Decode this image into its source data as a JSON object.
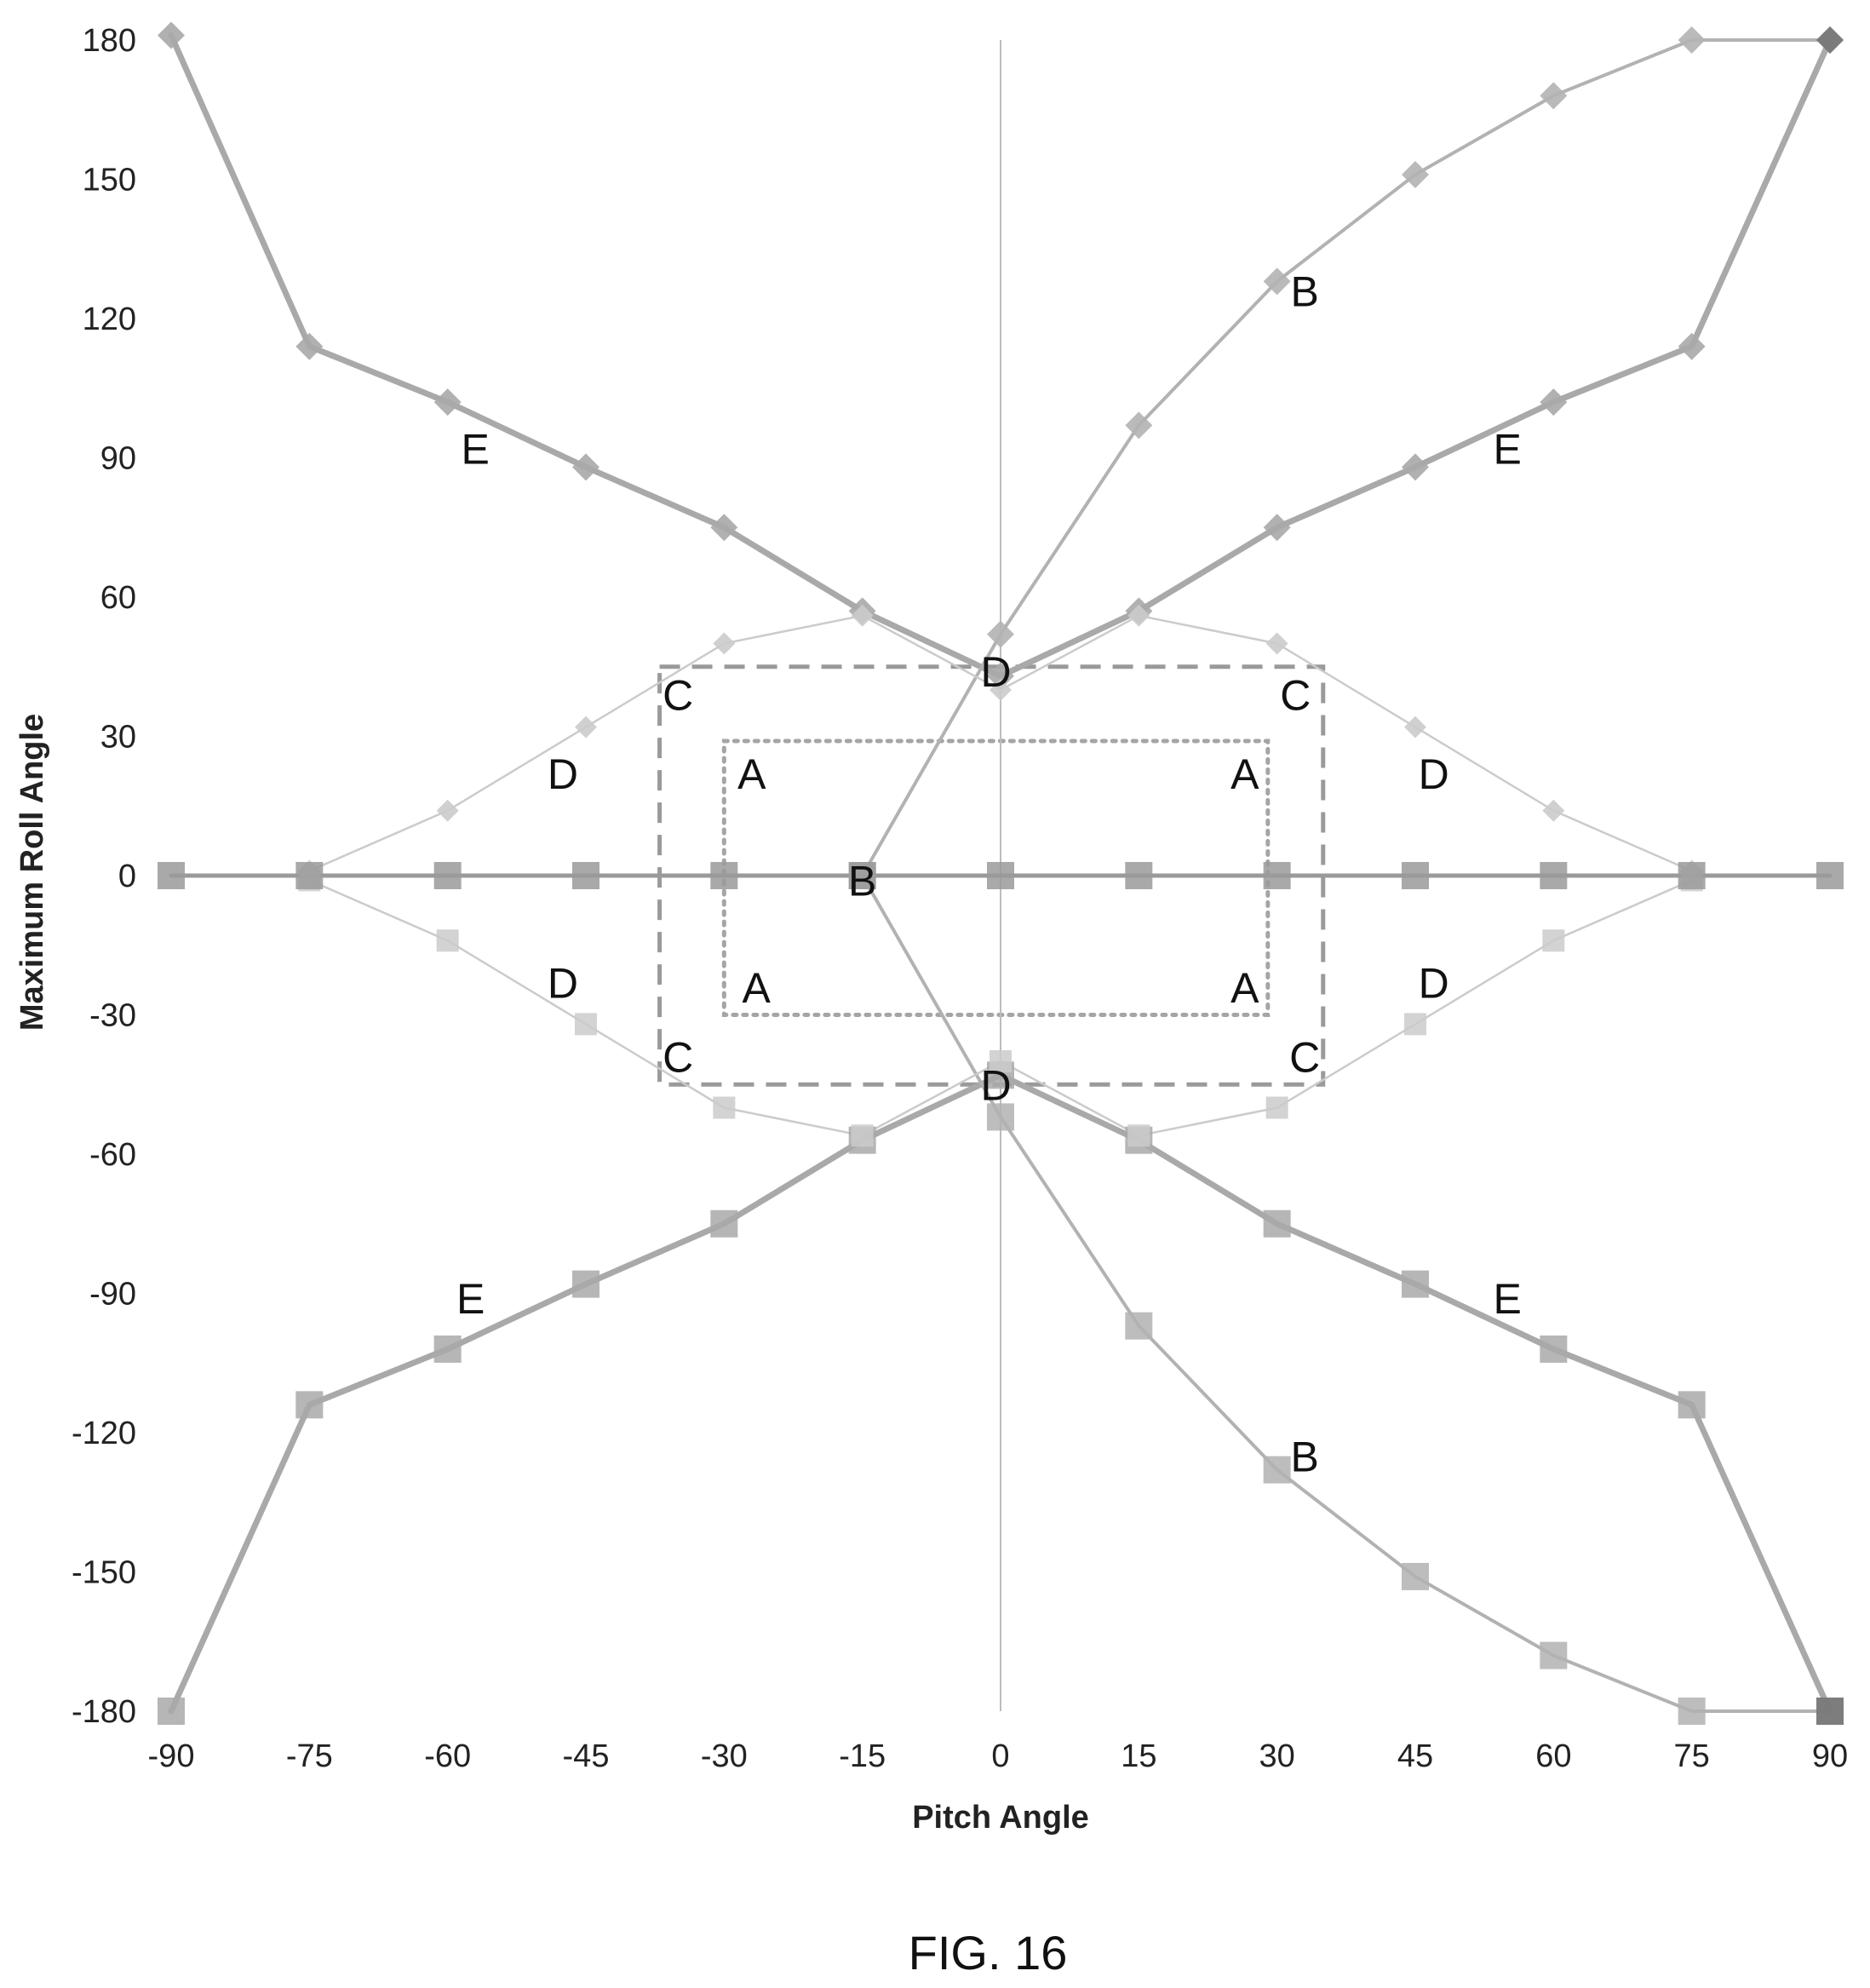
{
  "figure": {
    "caption": "FIG. 16"
  },
  "chart_data": {
    "type": "line",
    "title": "",
    "xlabel": "Pitch Angle",
    "ylabel": "Maximum Roll Angle",
    "xlim": [
      -90,
      90
    ],
    "ylim": [
      -180,
      180
    ],
    "xticks": [
      "-90",
      "-75",
      "-60",
      "-45",
      "-30",
      "-15",
      "0",
      "15",
      "30",
      "45",
      "60",
      "75",
      "90"
    ],
    "yticks": [
      "180",
      "150",
      "120",
      "90",
      "60",
      "30",
      "0",
      "-30",
      "-60",
      "-90",
      "-120",
      "-150",
      "-180"
    ],
    "grid": false,
    "legend": "none",
    "colors": {
      "E": "#a9a9a9",
      "B": "#b2b2b2",
      "D": "#cbcbcb",
      "C": "#9a9a9a",
      "A": "#a5a5a5",
      "zero_line": "#9a9a9a",
      "endpoint": "#7a7a7a",
      "axis": "#bdbdbd"
    },
    "series": [
      {
        "id": "E_upper",
        "marker": "diamond",
        "x": [
          -90,
          -75,
          -60,
          -45,
          -30,
          -15,
          0,
          15,
          30,
          45,
          60,
          75,
          90
        ],
        "y": [
          181,
          114,
          102,
          88,
          75,
          57,
          43,
          57,
          75,
          88,
          102,
          114,
          180
        ]
      },
      {
        "id": "E_lower",
        "marker": "square",
        "x": [
          -90,
          -75,
          -60,
          -45,
          -30,
          -15,
          0,
          15,
          30,
          45,
          60,
          75,
          90
        ],
        "y": [
          -180,
          -114,
          -102,
          -88,
          -75,
          -57,
          -43,
          -57,
          -75,
          -88,
          -102,
          -114,
          -180
        ]
      },
      {
        "id": "B_upper",
        "marker": "diamond",
        "x": [
          -15,
          0,
          15,
          30,
          45,
          60,
          75,
          90
        ],
        "y": [
          0,
          52,
          97,
          128,
          151,
          168,
          180,
          180
        ]
      },
      {
        "id": "B_lower",
        "marker": "square",
        "x": [
          -15,
          0,
          15,
          30,
          45,
          60,
          75,
          90
        ],
        "y": [
          0,
          -52,
          -97,
          -128,
          -151,
          -168,
          -180,
          -180
        ]
      },
      {
        "id": "D_upper",
        "marker": "diamond",
        "x": [
          -75,
          -60,
          -45,
          -30,
          -15,
          0,
          15,
          30,
          45,
          60,
          75
        ],
        "y": [
          1,
          14,
          32,
          50,
          56,
          40,
          56,
          50,
          32,
          14,
          1
        ]
      },
      {
        "id": "D_lower",
        "marker": "square",
        "x": [
          -75,
          -60,
          -45,
          -30,
          -15,
          0,
          15,
          30,
          45,
          60,
          75
        ],
        "y": [
          -1,
          -14,
          -32,
          -50,
          -56,
          -40,
          -56,
          -50,
          -32,
          -14,
          -1
        ]
      },
      {
        "id": "zero_line",
        "marker": "square",
        "x": [
          -90,
          -75,
          -60,
          -45,
          -30,
          -15,
          0,
          15,
          30,
          45,
          60,
          75,
          90
        ],
        "y": [
          0,
          0,
          0,
          0,
          0,
          0,
          0,
          0,
          0,
          0,
          0,
          0,
          0
        ]
      }
    ],
    "regions": [
      {
        "id": "C",
        "style": "dashed",
        "x": [
          -37,
          35
        ],
        "y": [
          -45,
          45
        ]
      },
      {
        "id": "A",
        "style": "dotted",
        "x": [
          -30,
          29
        ],
        "y": [
          -30,
          29
        ]
      }
    ],
    "annotations": [
      {
        "text": "B",
        "x": 33,
        "y": 126
      },
      {
        "text": "E",
        "x": -57,
        "y": 92
      },
      {
        "text": "E",
        "x": 55,
        "y": 92
      },
      {
        "text": "D",
        "x": -0.5,
        "y": 44
      },
      {
        "text": "C",
        "x": -35,
        "y": 39
      },
      {
        "text": "C",
        "x": 32,
        "y": 39
      },
      {
        "text": "D",
        "x": -47.5,
        "y": 22
      },
      {
        "text": "A",
        "x": -27,
        "y": 22
      },
      {
        "text": "A",
        "x": 26.5,
        "y": 22
      },
      {
        "text": "D",
        "x": 47,
        "y": 22
      },
      {
        "text": "B",
        "x": -15,
        "y": -1
      },
      {
        "text": "D",
        "x": -47.5,
        "y": -23
      },
      {
        "text": "A",
        "x": -26.5,
        "y": -24
      },
      {
        "text": "A",
        "x": 26.5,
        "y": -24
      },
      {
        "text": "D",
        "x": 47,
        "y": -23
      },
      {
        "text": "C",
        "x": -35,
        "y": -39
      },
      {
        "text": "C",
        "x": 33,
        "y": -39
      },
      {
        "text": "D",
        "x": -0.5,
        "y": -45
      },
      {
        "text": "E",
        "x": -57.5,
        "y": -91
      },
      {
        "text": "E",
        "x": 55,
        "y": -91
      },
      {
        "text": "B",
        "x": 33,
        "y": -125
      }
    ]
  }
}
